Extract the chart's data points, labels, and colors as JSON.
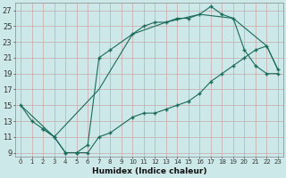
{
  "xlabel": "Humidex (Indice chaleur)",
  "bg_color": "#cde8e8",
  "grid_color": "#b0d0d0",
  "line_color": "#1a6b5a",
  "xlim": [
    -0.5,
    23.5
  ],
  "ylim": [
    8.5,
    28
  ],
  "xticks": [
    0,
    1,
    2,
    3,
    4,
    5,
    6,
    7,
    8,
    9,
    10,
    11,
    12,
    13,
    14,
    15,
    16,
    17,
    18,
    19,
    20,
    21,
    22,
    23
  ],
  "yticks": [
    9,
    11,
    13,
    15,
    17,
    19,
    21,
    23,
    25,
    27
  ],
  "line1_x": [
    0,
    1,
    2,
    3,
    4,
    5,
    6,
    7,
    8,
    10,
    11,
    12,
    13,
    14,
    15,
    16,
    17,
    18,
    19,
    20,
    21,
    22,
    23
  ],
  "line1_y": [
    15,
    13,
    12,
    11,
    9,
    9,
    10,
    21,
    22,
    24,
    25,
    25.5,
    25.5,
    26,
    26,
    26.5,
    27.5,
    26.5,
    26,
    22,
    20,
    19,
    19
  ],
  "line2_x": [
    2,
    3,
    4,
    5,
    6,
    7,
    8,
    10,
    11,
    12,
    13,
    14,
    15,
    16,
    17,
    18,
    19,
    20,
    21,
    22,
    23
  ],
  "line2_y": [
    12,
    11,
    9,
    9,
    9,
    11,
    11.5,
    13.5,
    14,
    14,
    14.5,
    15,
    15.5,
    16.5,
    18,
    19,
    20,
    21,
    22,
    22.5,
    19.5
  ],
  "line3_x": [
    0,
    3,
    7,
    10,
    13,
    16,
    19,
    22,
    23
  ],
  "line3_y": [
    15,
    11,
    17,
    24,
    25.5,
    26.5,
    26,
    22.5,
    19.5
  ]
}
